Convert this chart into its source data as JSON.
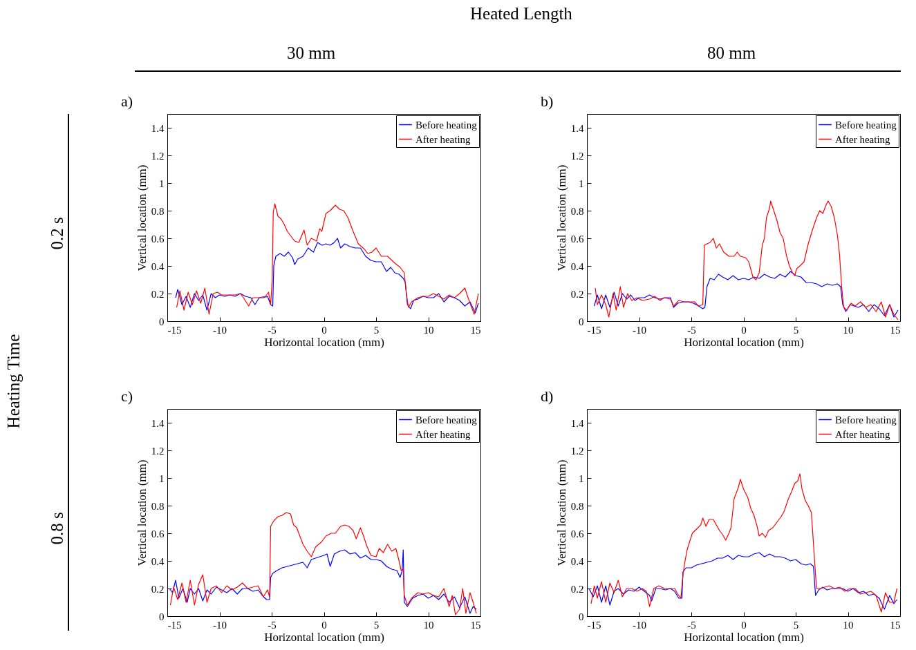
{
  "chart_data": [
    {
      "type": "other",
      "annotations": [
        "Heated Length",
        "30 mm",
        "80 mm",
        "Heating Time",
        "0.2 s",
        "0.8 s"
      ]
    },
    {
      "type": "line",
      "title": "a)",
      "xlabel": "Horizontal location (mm)",
      "ylabel": "Vertical location (mm)",
      "xlim": [
        -15,
        15
      ],
      "xticks": [
        -15,
        -10,
        -5,
        0,
        5,
        10,
        15
      ],
      "ylim": [
        0,
        1.5
      ],
      "yticks": [
        0,
        0.2,
        0.4,
        0.6,
        0.8,
        1,
        1.2,
        1.4
      ],
      "legend": "top right",
      "series": [
        {
          "name": "Before heating",
          "color": "#0000ff",
          "x": [
            -14.2,
            -14,
            -13.6,
            -13.2,
            -12.8,
            -12.4,
            -12,
            -11.6,
            -11.2,
            -10.8,
            -10.4,
            -10,
            -9.5,
            -9,
            -8.5,
            -8,
            -7.5,
            -7,
            -6.6,
            -6.2,
            -5.8,
            -5.4,
            -5.1,
            -4.9,
            -4.8,
            -4.6,
            -4.2,
            -3.8,
            -3.4,
            -3,
            -2.8,
            -2.5,
            -2,
            -1.5,
            -1,
            -0.6,
            -0.2,
            0.2,
            0.6,
            1,
            1.3,
            1.6,
            2,
            2.5,
            3,
            3.5,
            4,
            4.5,
            5,
            5.5,
            6,
            6.4,
            6.8,
            7.2,
            7.6,
            7.8,
            8,
            8.3,
            8.6,
            9,
            9.5,
            10,
            10.5,
            11,
            11.5,
            12,
            12.5,
            13,
            13.5,
            14,
            14.5,
            14.8
          ],
          "values": [
            0.17,
            0.23,
            0.12,
            0.18,
            0.1,
            0.2,
            0.15,
            0.19,
            0.08,
            0.2,
            0.17,
            0.19,
            0.18,
            0.19,
            0.18,
            0.2,
            0.18,
            0.17,
            0.12,
            0.17,
            0.17,
            0.18,
            0.12,
            0.11,
            0.4,
            0.47,
            0.49,
            0.47,
            0.5,
            0.46,
            0.41,
            0.45,
            0.47,
            0.53,
            0.5,
            0.57,
            0.55,
            0.56,
            0.55,
            0.57,
            0.6,
            0.53,
            0.56,
            0.54,
            0.53,
            0.53,
            0.47,
            0.44,
            0.43,
            0.43,
            0.36,
            0.39,
            0.35,
            0.34,
            0.31,
            0.28,
            0.12,
            0.09,
            0.15,
            0.16,
            0.18,
            0.17,
            0.17,
            0.2,
            0.14,
            0.18,
            0.17,
            0.15,
            0.11,
            0.14,
            0.06,
            0.13
          ]
        },
        {
          "name": "After heating",
          "color": "#ff0000",
          "x": [
            -14.1,
            -13.8,
            -13.4,
            -13,
            -12.6,
            -12.2,
            -11.8,
            -11.4,
            -11,
            -10.6,
            -10.2,
            -9.8,
            -9,
            -8.5,
            -8,
            -7.7,
            -7.2,
            -6.8,
            -6.2,
            -5.6,
            -5.3,
            -5.1,
            -4.95,
            -4.85,
            -4.7,
            -4.4,
            -4.1,
            -3.8,
            -3.5,
            -3.2,
            -2.8,
            -2.4,
            -1.9,
            -1.6,
            -1.2,
            -0.7,
            -0.4,
            -0.2,
            0.2,
            0.6,
            1.1,
            1.5,
            1.9,
            2.3,
            2.8,
            3.3,
            3.9,
            4.2,
            4.6,
            5,
            5.5,
            6.1,
            6.8,
            7.3,
            7.7,
            7.9,
            8.1,
            8.4,
            9,
            9.5,
            10,
            10.5,
            11,
            11.5,
            12,
            12.5,
            13,
            13.5,
            14,
            14.4,
            14.8
          ],
          "values": [
            0.1,
            0.22,
            0.08,
            0.21,
            0.12,
            0.22,
            0.13,
            0.24,
            0.05,
            0.2,
            0.21,
            0.19,
            0.19,
            0.19,
            0.2,
            0.17,
            0.11,
            0.17,
            0.17,
            0.18,
            0.21,
            0.12,
            0.3,
            0.79,
            0.85,
            0.76,
            0.74,
            0.7,
            0.65,
            0.62,
            0.58,
            0.57,
            0.66,
            0.55,
            0.6,
            0.58,
            0.67,
            0.65,
            0.78,
            0.8,
            0.84,
            0.81,
            0.8,
            0.75,
            0.65,
            0.56,
            0.52,
            0.49,
            0.5,
            0.53,
            0.47,
            0.47,
            0.42,
            0.39,
            0.35,
            0.2,
            0.1,
            0.14,
            0.17,
            0.18,
            0.18,
            0.2,
            0.18,
            0.16,
            0.19,
            0.17,
            0.2,
            0.24,
            0.13,
            0.05,
            0.2
          ]
        }
      ]
    },
    {
      "type": "line",
      "title": "b)",
      "xlabel": "Horizontal location (mm)",
      "ylabel": "Vertical location (mm)",
      "xlim": [
        -15,
        15
      ],
      "xticks": [
        -15,
        -10,
        -5,
        0,
        5,
        10,
        15
      ],
      "ylim": [
        0,
        1.5
      ],
      "yticks": [
        0,
        0.2,
        0.4,
        0.6,
        0.8,
        1,
        1.2,
        1.4
      ],
      "legend": "top right",
      "series": [
        {
          "name": "Before heating",
          "color": "#0000ff",
          "x": [
            -14.3,
            -14,
            -13.6,
            -13.2,
            -12.8,
            -12.4,
            -12,
            -11.6,
            -11.2,
            -10.8,
            -10.4,
            -10,
            -9.5,
            -9,
            -8.5,
            -8,
            -7.5,
            -7,
            -6.7,
            -6.3,
            -5.8,
            -5.3,
            -4.8,
            -4.3,
            -3.9,
            -3.7,
            -3.5,
            -3.2,
            -2.8,
            -2.4,
            -2,
            -1.5,
            -1,
            -0.5,
            0,
            0.5,
            1,
            1.5,
            2,
            2.5,
            3,
            3.5,
            4,
            4.5,
            5,
            5.5,
            6,
            6.5,
            7,
            7.5,
            8,
            8.5,
            9,
            9.3,
            9.5,
            9.8,
            10.2,
            10.6,
            11,
            11.5,
            12,
            12.5,
            13,
            13.5,
            14,
            14.4,
            14.8
          ],
          "values": [
            0.11,
            0.19,
            0.09,
            0.19,
            0.1,
            0.21,
            0.11,
            0.2,
            0.16,
            0.19,
            0.15,
            0.17,
            0.17,
            0.19,
            0.17,
            0.16,
            0.17,
            0.17,
            0.1,
            0.13,
            0.14,
            0.14,
            0.13,
            0.11,
            0.09,
            0.1,
            0.25,
            0.31,
            0.3,
            0.34,
            0.32,
            0.3,
            0.33,
            0.3,
            0.31,
            0.3,
            0.32,
            0.31,
            0.34,
            0.32,
            0.31,
            0.34,
            0.32,
            0.36,
            0.33,
            0.32,
            0.28,
            0.28,
            0.27,
            0.25,
            0.27,
            0.26,
            0.27,
            0.25,
            0.12,
            0.07,
            0.12,
            0.11,
            0.1,
            0.12,
            0.07,
            0.12,
            0.09,
            0.04,
            0.12,
            0.03,
            0.08
          ]
        },
        {
          "name": "After heating",
          "color": "#ff0000",
          "x": [
            -14.2,
            -14,
            -13.6,
            -13.2,
            -12.9,
            -12.5,
            -12.2,
            -11.8,
            -11.5,
            -11.1,
            -10.7,
            -10.2,
            -9.7,
            -9,
            -8.5,
            -8,
            -7.6,
            -7,
            -6.7,
            -6.2,
            -5.7,
            -5.2,
            -4.7,
            -4.3,
            -3.9,
            -3.75,
            -3.5,
            -3.2,
            -2.9,
            -2.6,
            -2.3,
            -1.9,
            -1.4,
            -0.9,
            -0.6,
            -0.3,
            0.2,
            0.5,
            0.9,
            1.2,
            1.5,
            1.8,
            2,
            2.2,
            2.5,
            2.6,
            2.9,
            3.2,
            3.5,
            3.8,
            4.1,
            4.4,
            4.7,
            4.9,
            5.1,
            5.4,
            5.8,
            6.2,
            6.6,
            7,
            7.3,
            7.6,
            7.9,
            8.1,
            8.4,
            8.7,
            9,
            9.2,
            9.4,
            9.6,
            9.9,
            10.3,
            10.7,
            11.2,
            11.7,
            12.2,
            12.7,
            13.2,
            13.6,
            14,
            14.4,
            14.8
          ],
          "values": [
            0.24,
            0.12,
            0.19,
            0.12,
            0.03,
            0.2,
            0.08,
            0.25,
            0.1,
            0.2,
            0.15,
            0.17,
            0.15,
            0.16,
            0.18,
            0.15,
            0.17,
            0.16,
            0.11,
            0.15,
            0.14,
            0.14,
            0.14,
            0.11,
            0.12,
            0.55,
            0.56,
            0.57,
            0.6,
            0.53,
            0.56,
            0.5,
            0.47,
            0.47,
            0.5,
            0.47,
            0.46,
            0.43,
            0.32,
            0.3,
            0.35,
            0.55,
            0.6,
            0.75,
            0.82,
            0.87,
            0.8,
            0.73,
            0.64,
            0.6,
            0.48,
            0.4,
            0.35,
            0.33,
            0.38,
            0.4,
            0.43,
            0.56,
            0.66,
            0.75,
            0.8,
            0.78,
            0.84,
            0.87,
            0.83,
            0.75,
            0.62,
            0.48,
            0.25,
            0.1,
            0.08,
            0.13,
            0.11,
            0.14,
            0.1,
            0.12,
            0.07,
            0.14,
            0.03,
            0.12,
            0.05,
            0.01
          ]
        }
      ]
    },
    {
      "type": "line",
      "title": "c)",
      "xlabel": "Horizontal location (mm)",
      "ylabel": "Vertical location (mm)",
      "xlim": [
        -15,
        15
      ],
      "xticks": [
        -15,
        -10,
        -5,
        0,
        5,
        10,
        15
      ],
      "ylim": [
        0,
        1.5
      ],
      "yticks": [
        0,
        0.2,
        0.4,
        0.6,
        0.8,
        1,
        1.2,
        1.4
      ],
      "legend": "top right",
      "series": [
        {
          "name": "Before heating",
          "color": "#0000ff",
          "x": [
            -14.8,
            -14.5,
            -14.2,
            -13.9,
            -13.5,
            -13.1,
            -12.8,
            -12.4,
            -12,
            -11.6,
            -11.2,
            -10.8,
            -10.3,
            -9.8,
            -9.3,
            -8.8,
            -8.3,
            -7.8,
            -7.3,
            -6.8,
            -6.3,
            -5.9,
            -5.5,
            -5.2,
            -5.1,
            -4.9,
            -4.5,
            -4,
            -3.5,
            -3,
            -2.5,
            -2,
            -1.6,
            -1.2,
            -0.8,
            -0.4,
            0,
            0.3,
            0.6,
            1,
            1.5,
            2,
            2.5,
            3,
            3.5,
            4,
            4.5,
            5,
            5.5,
            6,
            6.5,
            7,
            7.3,
            7.5,
            7.6,
            7.7,
            8,
            8.5,
            9,
            9.5,
            10,
            10.5,
            11,
            11.5,
            12,
            12.5,
            13,
            13.5,
            14,
            14.3,
            14.6
          ],
          "values": [
            0.2,
            0.17,
            0.26,
            0.13,
            0.2,
            0.1,
            0.2,
            0.16,
            0.2,
            0.11,
            0.19,
            0.16,
            0.21,
            0.19,
            0.17,
            0.2,
            0.16,
            0.2,
            0.2,
            0.18,
            0.19,
            0.15,
            0.12,
            0.12,
            0.28,
            0.31,
            0.33,
            0.35,
            0.36,
            0.37,
            0.38,
            0.39,
            0.35,
            0.41,
            0.42,
            0.43,
            0.44,
            0.45,
            0.36,
            0.45,
            0.47,
            0.48,
            0.45,
            0.46,
            0.42,
            0.44,
            0.41,
            0.41,
            0.4,
            0.36,
            0.34,
            0.33,
            0.28,
            0.33,
            0.48,
            0.1,
            0.07,
            0.13,
            0.15,
            0.16,
            0.13,
            0.15,
            0.12,
            0.16,
            0.1,
            0.14,
            0.06,
            0.14,
            0.02,
            0.07,
            0.05
          ]
        },
        {
          "name": "After heating",
          "color": "#ff0000",
          "x": [
            -14.7,
            -14.4,
            -14,
            -13.6,
            -13.2,
            -12.8,
            -12.4,
            -12,
            -11.6,
            -11.2,
            -10.8,
            -10.3,
            -9.8,
            -9.3,
            -8.8,
            -8.3,
            -7.8,
            -7.3,
            -6.8,
            -6.3,
            -5.8,
            -5.4,
            -5.2,
            -5.1,
            -4.8,
            -4.4,
            -4,
            -3.6,
            -3.2,
            -2.9,
            -2.6,
            -2.3,
            -2,
            -1.6,
            -1.2,
            -0.8,
            -0.2,
            0.2,
            0.7,
            1.1,
            1.6,
            2,
            2.4,
            2.8,
            3.1,
            3.5,
            3.8,
            4.1,
            4.5,
            5,
            5.3,
            5.7,
            6.1,
            6.5,
            6.9,
            7.2,
            7.4,
            7.6,
            7.7,
            8,
            8.4,
            9,
            9.5,
            10,
            10.5,
            11,
            11.5,
            12,
            12.3,
            12.6,
            13,
            13.3,
            13.6,
            14,
            14.3,
            14.6
          ],
          "values": [
            0.08,
            0.21,
            0.12,
            0.24,
            0.1,
            0.26,
            0.08,
            0.23,
            0.3,
            0.1,
            0.2,
            0.22,
            0.17,
            0.22,
            0.19,
            0.21,
            0.24,
            0.2,
            0.21,
            0.22,
            0.14,
            0.19,
            0.14,
            0.65,
            0.69,
            0.72,
            0.73,
            0.75,
            0.74,
            0.66,
            0.64,
            0.58,
            0.52,
            0.47,
            0.43,
            0.5,
            0.54,
            0.58,
            0.6,
            0.6,
            0.65,
            0.66,
            0.65,
            0.62,
            0.56,
            0.64,
            0.58,
            0.51,
            0.44,
            0.43,
            0.49,
            0.46,
            0.52,
            0.47,
            0.49,
            0.4,
            0.33,
            0.34,
            0.15,
            0.08,
            0.13,
            0.17,
            0.16,
            0.17,
            0.15,
            0.14,
            0.2,
            0.07,
            0.15,
            0.01,
            0.05,
            0.2,
            0.02,
            0.17,
            0.1,
            0.02
          ]
        }
      ]
    },
    {
      "type": "line",
      "title": "d)",
      "xlabel": "Horizontal location (mm)",
      "ylabel": "Vertical location (mm)",
      "xlim": [
        -15,
        15
      ],
      "xticks": [
        -15,
        -10,
        -5,
        0,
        5,
        10,
        15
      ],
      "ylim": [
        0,
        1.5
      ],
      "yticks": [
        0,
        0.2,
        0.4,
        0.6,
        0.8,
        1,
        1.2,
        1.4
      ],
      "legend": "top right",
      "series": [
        {
          "name": "Before heating",
          "color": "#0000ff",
          "x": [
            -14.8,
            -14.4,
            -14,
            -13.6,
            -13.2,
            -12.8,
            -12.4,
            -12,
            -11.5,
            -11,
            -10.5,
            -10,
            -9.5,
            -9,
            -8.8,
            -8.4,
            -8,
            -7.5,
            -7,
            -6.6,
            -6.2,
            -5.9,
            -5.8,
            -5.5,
            -5,
            -4.5,
            -4,
            -3.5,
            -3,
            -2.5,
            -2,
            -1.5,
            -1,
            -0.5,
            0,
            0.5,
            1,
            1.5,
            2,
            2.5,
            3,
            3.5,
            4,
            4.5,
            5,
            5.5,
            6,
            6.4,
            6.7,
            6.9,
            7.2,
            7.6,
            8,
            8.5,
            9,
            9.5,
            10,
            10.5,
            11,
            11.5,
            12,
            12.5,
            13,
            13.5,
            14,
            14.4,
            14.7
          ],
          "values": [
            0.2,
            0.14,
            0.22,
            0.1,
            0.22,
            0.08,
            0.18,
            0.2,
            0.16,
            0.19,
            0.18,
            0.21,
            0.18,
            0.15,
            0.11,
            0.2,
            0.2,
            0.19,
            0.2,
            0.18,
            0.13,
            0.13,
            0.32,
            0.35,
            0.35,
            0.37,
            0.38,
            0.39,
            0.4,
            0.42,
            0.42,
            0.44,
            0.41,
            0.44,
            0.43,
            0.43,
            0.45,
            0.46,
            0.43,
            0.45,
            0.43,
            0.43,
            0.42,
            0.4,
            0.41,
            0.38,
            0.37,
            0.38,
            0.36,
            0.15,
            0.19,
            0.21,
            0.19,
            0.2,
            0.2,
            0.2,
            0.18,
            0.2,
            0.17,
            0.18,
            0.15,
            0.16,
            0.13,
            0.05,
            0.15,
            0.09,
            0.12
          ]
        },
        {
          "name": "After heating",
          "color": "#ff0000",
          "x": [
            -14.6,
            -14.3,
            -14,
            -13.6,
            -13.2,
            -12.8,
            -12.4,
            -12,
            -11.6,
            -11.2,
            -10.7,
            -10.2,
            -9.7,
            -9.3,
            -9,
            -8.6,
            -8.1,
            -7.6,
            -7.1,
            -6.6,
            -6.3,
            -6,
            -5.8,
            -5.6,
            -5.4,
            -5.2,
            -4.9,
            -4.5,
            -4.1,
            -3.9,
            -3.6,
            -3.3,
            -2.9,
            -2.6,
            -2.3,
            -2,
            -1.7,
            -1.4,
            -1.2,
            -0.9,
            -0.5,
            -0.3,
            0,
            0.4,
            0.7,
            1,
            1.3,
            1.5,
            1.8,
            2.1,
            2.4,
            2.8,
            3.2,
            3.6,
            3.9,
            4.3,
            4.6,
            4.9,
            5.2,
            5.4,
            5.6,
            5.9,
            6.2,
            6.5,
            6.9,
            7,
            7.4,
            7.8,
            8.2,
            8.7,
            9.2,
            9.7,
            10.2,
            10.7,
            11.2,
            11.7,
            12.2,
            12.7,
            13.2,
            13.6,
            14,
            14.4,
            14.7
          ],
          "values": [
            0.09,
            0.22,
            0.13,
            0.25,
            0.1,
            0.24,
            0.17,
            0.26,
            0.14,
            0.2,
            0.2,
            0.18,
            0.2,
            0.18,
            0.07,
            0.2,
            0.22,
            0.2,
            0.2,
            0.2,
            0.16,
            0.13,
            0.3,
            0.4,
            0.48,
            0.53,
            0.6,
            0.63,
            0.66,
            0.71,
            0.65,
            0.7,
            0.7,
            0.66,
            0.62,
            0.59,
            0.55,
            0.6,
            0.64,
            0.85,
            0.93,
            0.99,
            0.92,
            0.86,
            0.78,
            0.73,
            0.65,
            0.58,
            0.6,
            0.57,
            0.62,
            0.64,
            0.68,
            0.72,
            0.76,
            0.85,
            0.9,
            0.96,
            0.98,
            1.03,
            0.92,
            0.84,
            0.8,
            0.75,
            0.3,
            0.2,
            0.2,
            0.21,
            0.22,
            0.2,
            0.21,
            0.18,
            0.2,
            0.2,
            0.16,
            0.17,
            0.18,
            0.15,
            0.03,
            0.17,
            0.1,
            0.1,
            0.2
          ]
        }
      ]
    }
  ]
}
